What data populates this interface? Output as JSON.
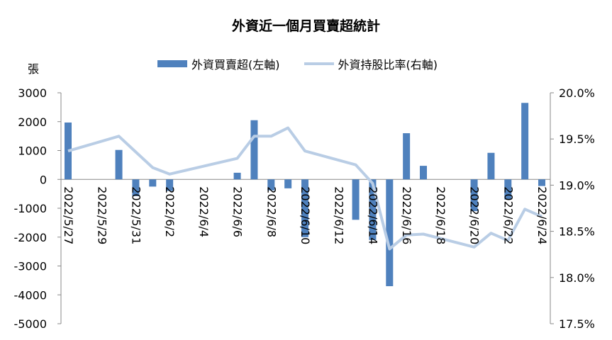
{
  "chart_data": {
    "type": "bar",
    "title": "外資近一個月買賣超統計",
    "y_unit_label": "張",
    "categories": [
      "2022/5/27",
      "2022/5/30",
      "2022/5/31",
      "2022/6/1",
      "2022/6/2",
      "2022/6/6",
      "2022/6/7",
      "2022/6/8",
      "2022/6/9",
      "2022/6/10",
      "2022/6/13",
      "2022/6/14",
      "2022/6/15",
      "2022/6/16",
      "2022/6/17",
      "2022/6/20",
      "2022/6/21",
      "2022/6/22",
      "2022/6/23",
      "2022/6/24"
    ],
    "x_dates": [
      "2022-05-27",
      "2022-05-30",
      "2022-05-31",
      "2022-06-01",
      "2022-06-02",
      "2022-06-06",
      "2022-06-07",
      "2022-06-08",
      "2022-06-09",
      "2022-06-10",
      "2022-06-13",
      "2022-06-14",
      "2022-06-15",
      "2022-06-16",
      "2022-06-17",
      "2022-06-20",
      "2022-06-21",
      "2022-06-22",
      "2022-06-23",
      "2022-06-24"
    ],
    "x_tick_labels": [
      "2022/5/27",
      "2022/5/29",
      "2022/5/31",
      "2022/6/2",
      "2022/6/4",
      "2022/6/6",
      "2022/6/8",
      "2022/6/10",
      "2022/6/12",
      "2022/6/14",
      "2022/6/16",
      "2022/6/18",
      "2022/6/20",
      "2022/6/22",
      "2022/6/24"
    ],
    "x_tick_dates": [
      "2022-05-27",
      "2022-05-29",
      "2022-05-31",
      "2022-06-02",
      "2022-06-04",
      "2022-06-06",
      "2022-06-08",
      "2022-06-10",
      "2022-06-12",
      "2022-06-14",
      "2022-06-16",
      "2022-06-18",
      "2022-06-20",
      "2022-06-22",
      "2022-06-24"
    ],
    "series": [
      {
        "name": "外資買賣超(左軸)",
        "type": "bar",
        "axis": "left",
        "color": "#4f81bd",
        "values": [
          1970,
          1020,
          -580,
          -250,
          -400,
          230,
          2050,
          -380,
          -310,
          -2000,
          -1400,
          -2100,
          -3700,
          1600,
          470,
          -1100,
          920,
          -700,
          2650,
          -230
        ]
      },
      {
        "name": "外資持股比率(右軸)",
        "type": "line",
        "axis": "right",
        "color": "#b9cde5",
        "values": [
          19.37,
          19.53,
          19.36,
          19.19,
          19.12,
          19.29,
          19.53,
          19.53,
          19.62,
          19.37,
          19.22,
          19.02,
          18.31,
          18.46,
          18.47,
          18.33,
          18.48,
          18.4,
          18.74,
          18.66
        ]
      }
    ],
    "y_left": {
      "min": -5000,
      "max": 3000,
      "step": 1000,
      "ticks": [
        "3000",
        "2000",
        "1000",
        "0",
        "-1000",
        "-2000",
        "-3000",
        "-4000",
        "-5000"
      ]
    },
    "y_right": {
      "min": 17.5,
      "max": 20.0,
      "step": 0.5,
      "ticks": [
        "20.0%",
        "19.5%",
        "19.0%",
        "18.5%",
        "18.0%",
        "17.5%"
      ]
    },
    "grid": false,
    "legend_position": "top"
  }
}
